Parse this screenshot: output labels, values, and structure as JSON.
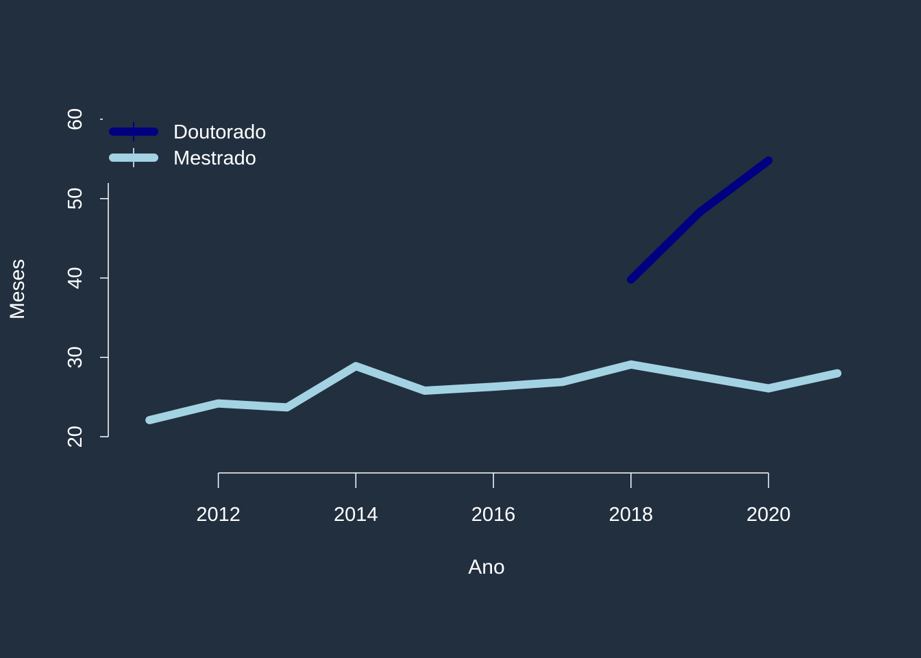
{
  "background": "#222f3f",
  "chart_data": {
    "type": "line",
    "xlabel": "Ano",
    "ylabel": "Meses",
    "xlim": [
      2010.4,
      2021.4
    ],
    "ylim": [
      17.6,
      62.5
    ],
    "x_ticks": [
      2012,
      2014,
      2016,
      2018,
      2020
    ],
    "x_tick_labels": [
      "2012",
      "2014",
      "2016",
      "2018",
      "2020"
    ],
    "y_ticks": [
      20,
      30,
      40,
      50,
      60
    ],
    "y_tick_labels": [
      "20",
      "30",
      "40",
      "50",
      "60"
    ],
    "legend_position": "top-left",
    "series": [
      {
        "name": "Doutorado",
        "color": "#000080",
        "x": [
          2018,
          2019,
          2020
        ],
        "y": [
          39.8,
          48.3,
          54.8
        ]
      },
      {
        "name": "Mestrado",
        "color": "#a3d3e3",
        "x": [
          2011,
          2012,
          2013,
          2014,
          2015,
          2016,
          2017,
          2018,
          2019,
          2020,
          2021
        ],
        "y": [
          22.1,
          24.2,
          23.7,
          28.9,
          25.8,
          26.3,
          26.9,
          29.1,
          27.6,
          26.1,
          28.0
        ]
      }
    ]
  }
}
